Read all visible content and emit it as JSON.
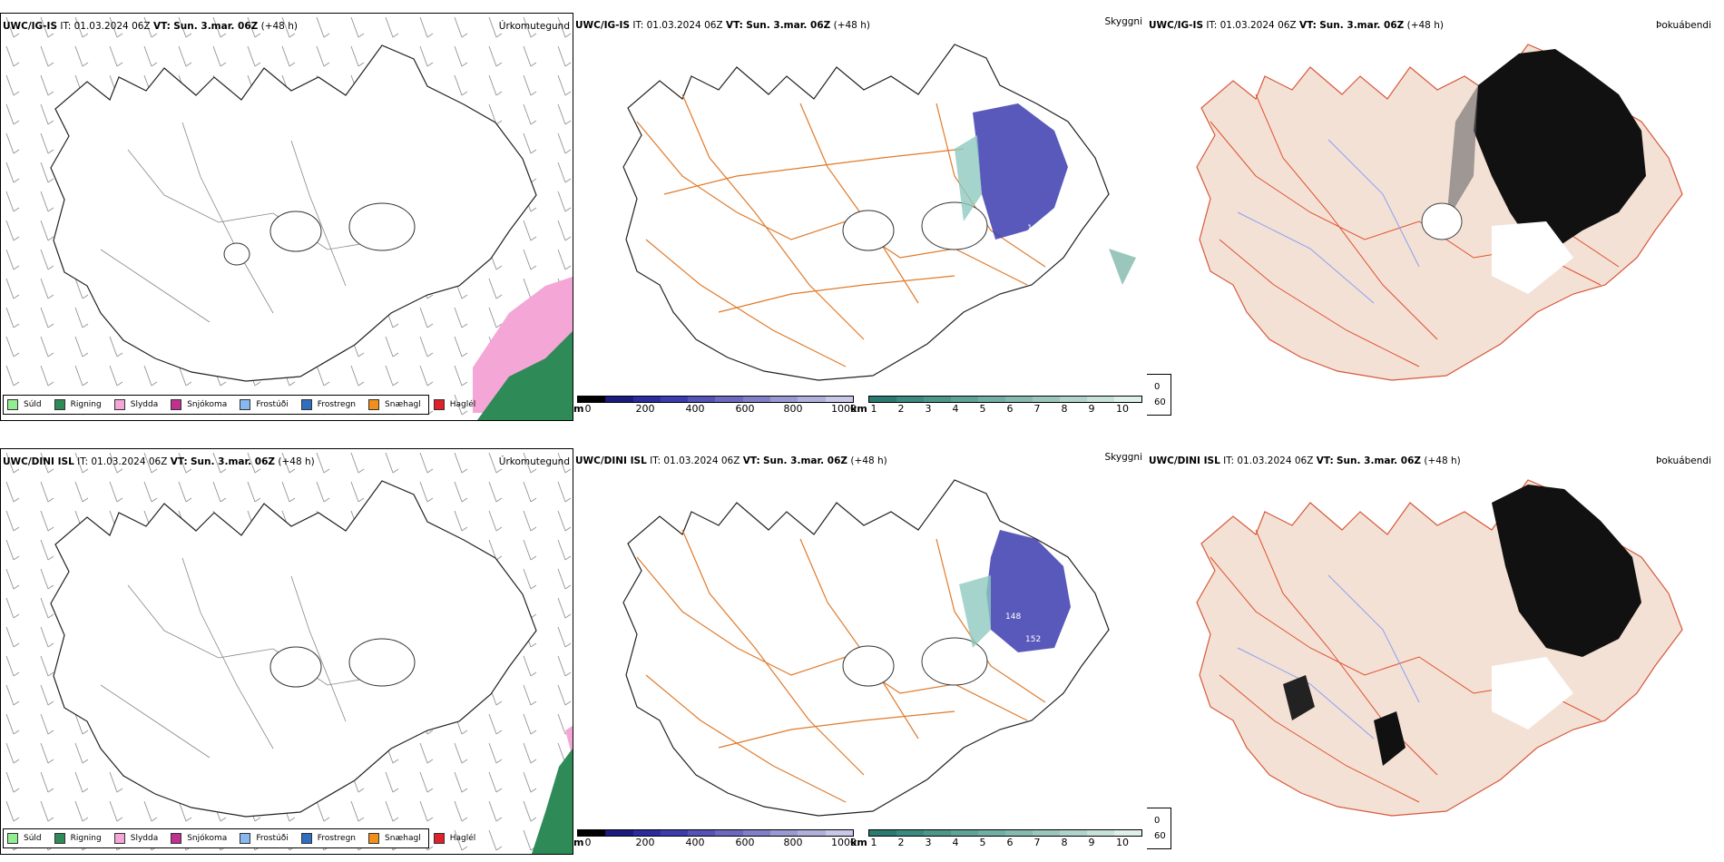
{
  "rows": [
    {
      "model": "UWC/IG-IS",
      "it_label": "IT:",
      "it_value": "01.03.2024 06Z",
      "vt_label": "VT:",
      "vt_value": "Sun. 3.mar. 06Z",
      "lead": "(+48 h)"
    },
    {
      "model": "UWC/DINI ISL",
      "it_label": "IT:",
      "it_value": "01.03.2024 06Z",
      "vt_label": "VT:",
      "vt_value": "Sun. 3.mar. 06Z",
      "lead": "(+48 h)"
    }
  ],
  "panel_titles": {
    "precip_type": "Úrkomutegund",
    "ceiling": "Skyggni",
    "fog": "Þokuábendi"
  },
  "precip_legend": [
    {
      "label": "Súld",
      "color": "#90ee90"
    },
    {
      "label": "Rigning",
      "color": "#2e8b57"
    },
    {
      "label": "Slydda",
      "color": "#f4a6d7"
    },
    {
      "label": "Snjókoma",
      "color": "#c03090"
    },
    {
      "label": "Frostúði",
      "color": "#87b8f0"
    },
    {
      "label": "Frostregn",
      "color": "#2f6fc0"
    },
    {
      "label": "Snæhagl",
      "color": "#f0901a"
    },
    {
      "label": "Haglél",
      "color": "#e0202a"
    }
  ],
  "ceiling_scale": {
    "unit": "m",
    "ticks": [
      "0",
      "200",
      "400",
      "600",
      "800",
      "1000"
    ],
    "colors": [
      "#000000",
      "#1a1a80",
      "#2c2ca0",
      "#3c3cb0",
      "#5454b8",
      "#6a6ac0",
      "#8080c8",
      "#9a9ad2",
      "#b0b0dc",
      "#c8c8e8"
    ]
  },
  "visibility_scale": {
    "unit": "km",
    "ticks": [
      "1",
      "2",
      "3",
      "4",
      "5",
      "6",
      "7",
      "8",
      "9",
      "10"
    ],
    "colors": [
      "#2a7a70",
      "#3a8a80",
      "#4c968c",
      "#5fa298",
      "#72aea4",
      "#86bab0",
      "#9ac6bc",
      "#b0d4cb",
      "#c6e2da",
      "#dff0ea"
    ]
  },
  "fog_legend": [
    {
      "label": "0",
      "color": "#000000"
    },
    {
      "label": "60",
      "color": "#ffffff"
    }
  ],
  "ceiling_labels_top": [
    "148"
  ],
  "ceiling_labels_bottom": [
    "148",
    "152"
  ]
}
